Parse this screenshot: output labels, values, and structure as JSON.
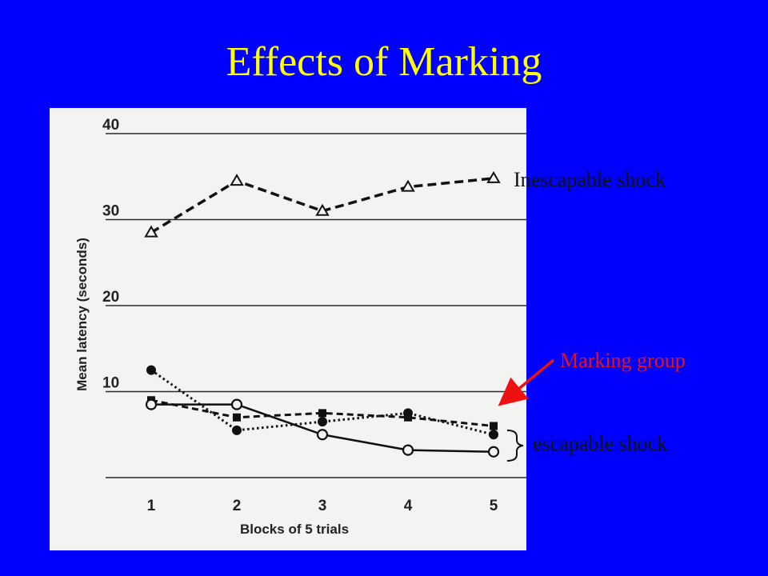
{
  "slide": {
    "title": "Effects of Marking"
  },
  "annotations": {
    "inescapable": "Inescapable shock",
    "marking": "Marking group",
    "escapable": "escapable shock"
  },
  "colors": {
    "background": "#0000ff",
    "title": "#ffff00",
    "arrow": "#ee1111",
    "panel": "#f3f3f1"
  },
  "chart_data": {
    "type": "line",
    "xlabel": "Blocks of 5 trials",
    "ylabel": "Mean latency (seconds)",
    "x": [
      1,
      2,
      3,
      4,
      5
    ],
    "ylim": [
      0,
      40
    ],
    "yticks": [
      10,
      20,
      30,
      40
    ],
    "grid": true,
    "series": [
      {
        "name": "Inescapable shock",
        "marker": "triangle-open",
        "line": "dashed-bold",
        "values": [
          28.5,
          34.5,
          31,
          33.8,
          34.8
        ]
      },
      {
        "marker": "square-filled",
        "line": "dashed",
        "values": [
          9,
          7,
          7.5,
          7,
          6
        ]
      },
      {
        "name": "Marking group",
        "marker": "circle-filled",
        "line": "dotted",
        "values": [
          12.5,
          5.5,
          6.5,
          7.5,
          5
        ]
      },
      {
        "name": "escapable shock",
        "marker": "circle-open",
        "line": "solid",
        "values": [
          8.5,
          8.5,
          5,
          3.2,
          3
        ]
      }
    ]
  }
}
